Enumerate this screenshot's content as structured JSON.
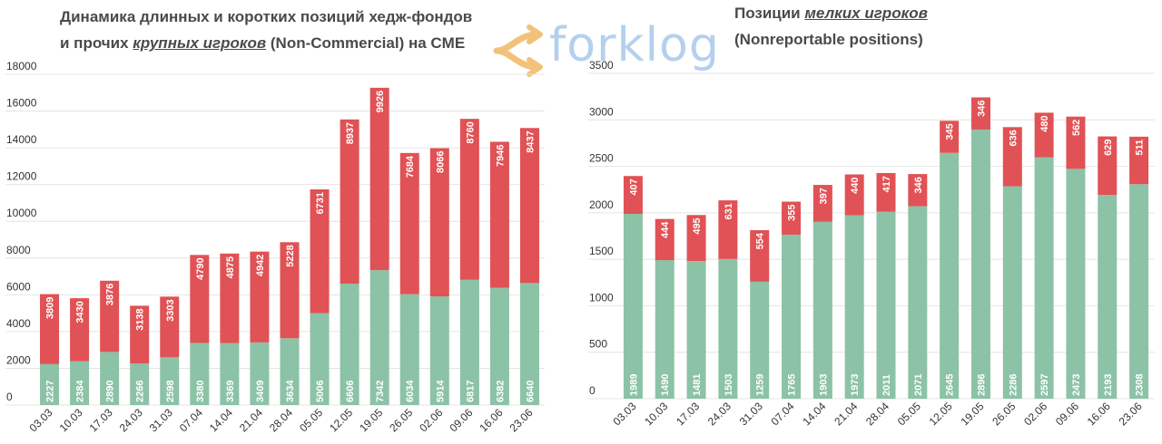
{
  "header": {
    "left_title_line1": "Динамика длинных и коротких позиций хедж-фондов",
    "left_title_line2_pre": "и прочих ",
    "left_title_line2_em": "крупных игроков",
    "left_title_line2_post": " (Non-Commercial) на CME",
    "right_title_line1_pre": "Позиции ",
    "right_title_line1_em": "мелких игроков",
    "right_title_line2": "(Nonreportable positions)",
    "logo_text": "forklog"
  },
  "colors": {
    "long": "#8cc2a6",
    "short": "#e05255",
    "grid": "#e4e4e4",
    "axis_text": "#333333",
    "title": "#4a4a4a",
    "logo_primary": "#a8c8ec",
    "logo_accent": "#f3c27a"
  },
  "chart_data": [
    {
      "type": "bar",
      "stacked": true,
      "categories": [
        "03.03",
        "10.03",
        "17.03",
        "24.03",
        "31.03",
        "07.04",
        "14.04",
        "21.04",
        "28.04",
        "05.05",
        "12.05",
        "19.05",
        "26.05",
        "02.06",
        "09.06",
        "16.06",
        "23.06"
      ],
      "series": [
        {
          "values": [
            2227,
            2384,
            2890,
            2266,
            2598,
            3380,
            3369,
            3409,
            3634,
            5006,
            6606,
            7342,
            6034,
            5914,
            6817,
            6382,
            6640
          ]
        },
        {
          "values": [
            3809,
            3430,
            3876,
            3138,
            3303,
            4790,
            4875,
            4942,
            5228,
            6731,
            8937,
            9926,
            7684,
            8066,
            8760,
            7946,
            8437
          ]
        }
      ],
      "yticks": [
        "0",
        "2000",
        "4000",
        "6000",
        "8000",
        "10000",
        "12000",
        "14000",
        "16000",
        "18000"
      ],
      "ylim": [
        0,
        18000
      ],
      "grid": true,
      "legend": "none",
      "data_labels": true
    },
    {
      "type": "bar",
      "stacked": true,
      "categories": [
        "03.03",
        "10.03",
        "17.03",
        "24.03",
        "31.03",
        "07.04",
        "14.04",
        "21.04",
        "28.04",
        "05.05",
        "12.05",
        "19.05",
        "26.05",
        "02.06",
        "09.06",
        "16.06",
        "23.06"
      ],
      "series": [
        {
          "values": [
            1989,
            1490,
            1481,
            1503,
            1259,
            1765,
            1903,
            1973,
            2011,
            2071,
            2645,
            2896,
            2286,
            2597,
            2473,
            2193,
            2308
          ]
        },
        {
          "values": [
            407,
            444,
            495,
            631,
            554,
            355,
            397,
            440,
            417,
            346,
            345,
            346,
            636,
            480,
            562,
            629,
            511
          ]
        }
      ],
      "yticks": [
        "0",
        "500",
        "1000",
        "1500",
        "2000",
        "2500",
        "3000",
        "3500"
      ],
      "ylim": [
        0,
        3500
      ],
      "grid": true,
      "legend": "none",
      "data_labels": true
    }
  ]
}
